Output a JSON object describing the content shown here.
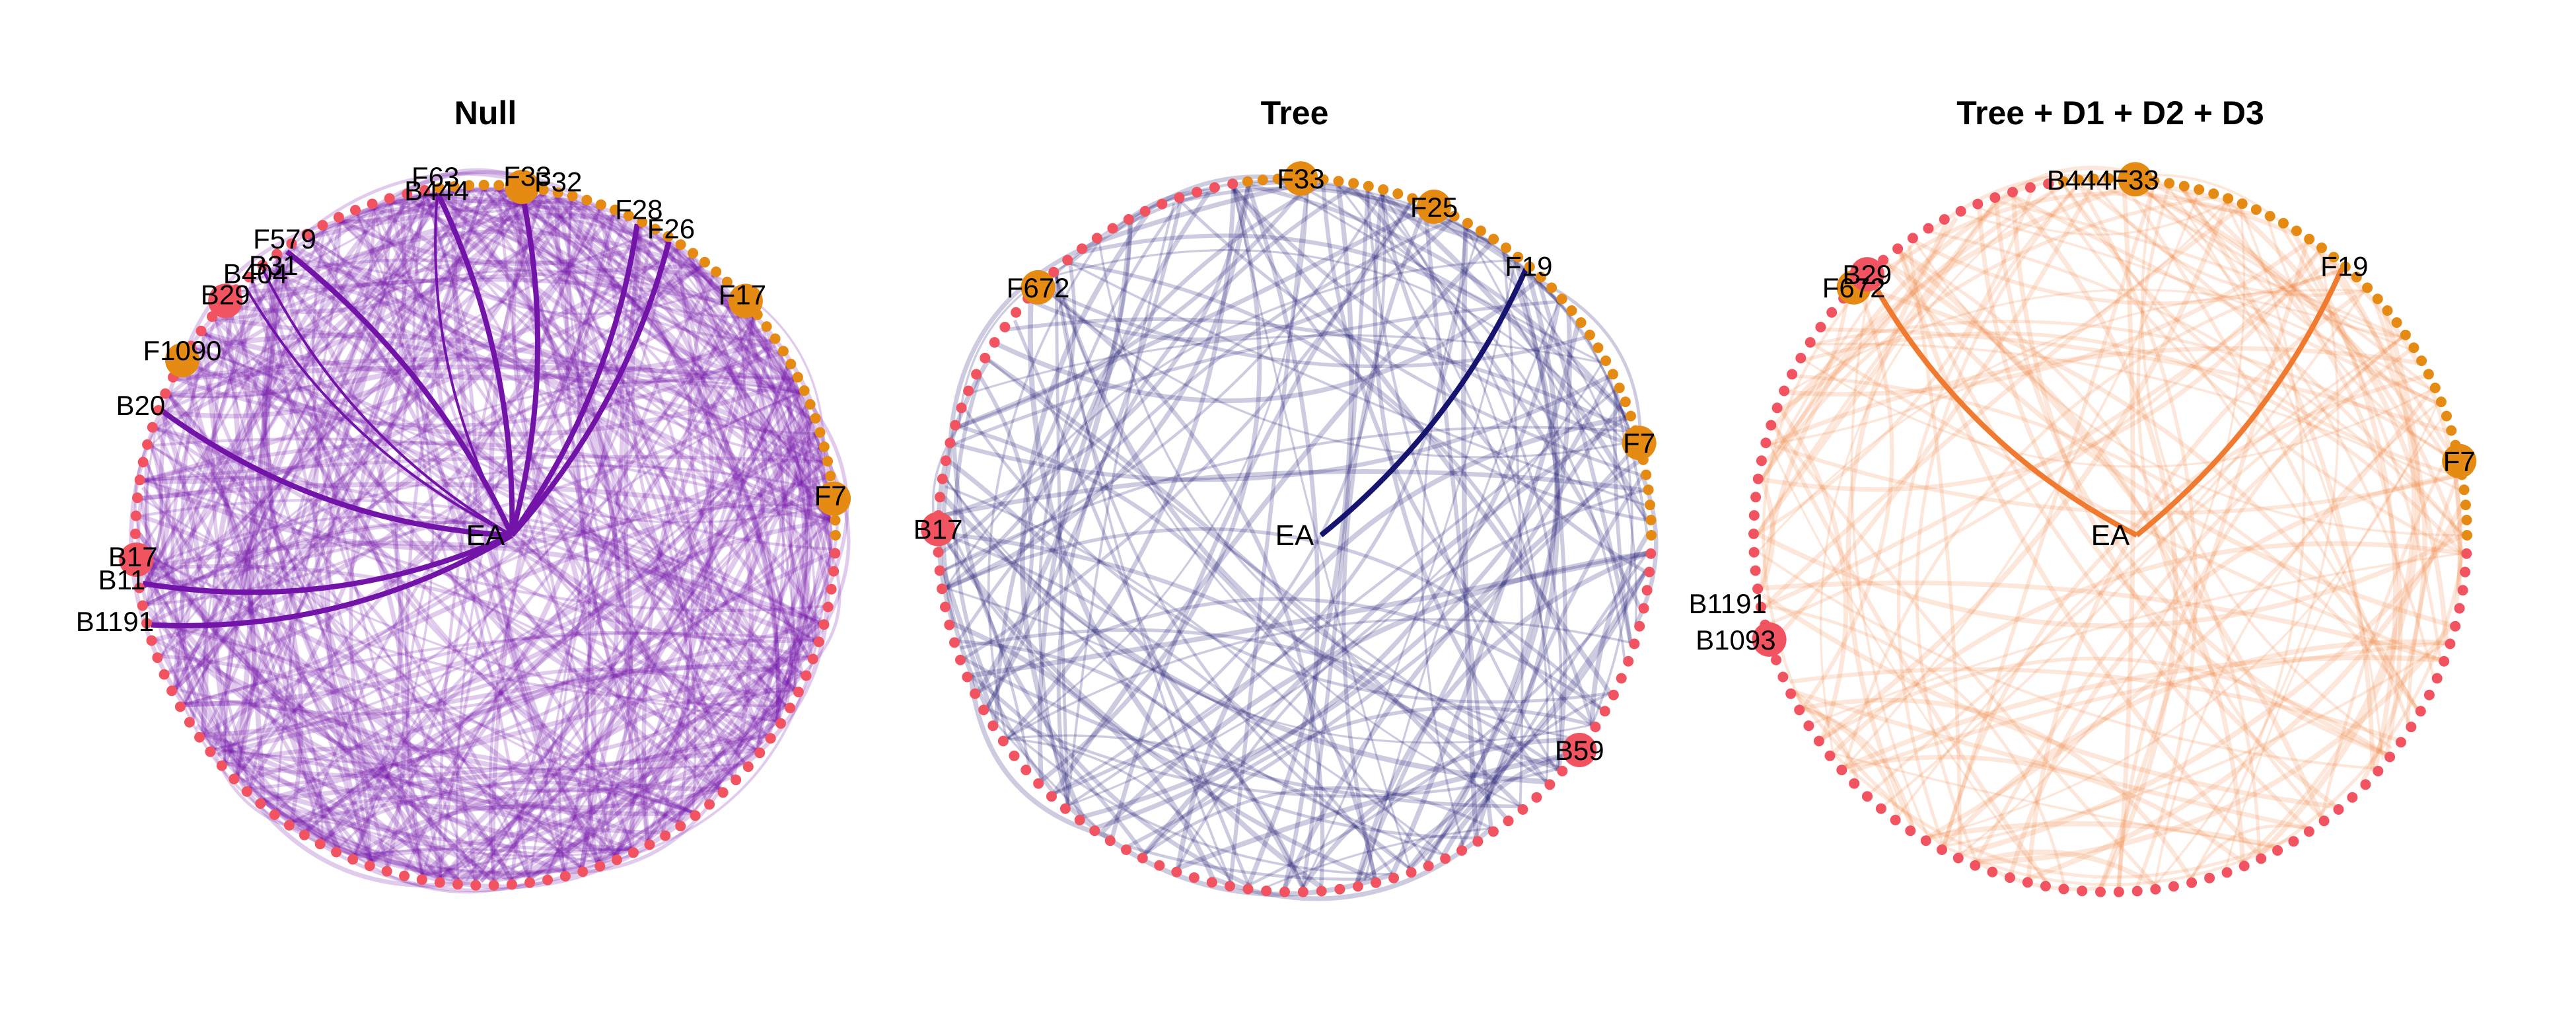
{
  "colors": {
    "background": "#ffffff",
    "bacteria_node": "#f25360",
    "fungi_node": "#e58a12"
  },
  "node_ring": {
    "fungi_count": 42,
    "bacteria_count": 88
  },
  "panels": [
    {
      "title": "Null",
      "edge_color": "#7214a8",
      "center_label": "EA",
      "labels": [
        {
          "text": "F63",
          "group": "F",
          "highlight": false
        },
        {
          "text": "F33",
          "group": "F",
          "highlight": true
        },
        {
          "text": "F32",
          "group": "F",
          "highlight": false
        },
        {
          "text": "F28",
          "group": "F",
          "highlight": false
        },
        {
          "text": "F26",
          "group": "F",
          "highlight": false
        },
        {
          "text": "F579",
          "group": "F",
          "highlight": false
        },
        {
          "text": "F1090",
          "group": "F",
          "highlight": true
        },
        {
          "text": "F17",
          "group": "F",
          "highlight": true
        },
        {
          "text": "F7",
          "group": "F",
          "highlight": true
        },
        {
          "text": "B11",
          "group": "B",
          "highlight": false
        },
        {
          "text": "B1191",
          "group": "B",
          "highlight": false
        },
        {
          "text": "B17",
          "group": "B",
          "highlight": true
        },
        {
          "text": "B20",
          "group": "B",
          "highlight": false
        },
        {
          "text": "B29",
          "group": "B",
          "highlight": true
        },
        {
          "text": "B404",
          "group": "B",
          "highlight": false
        },
        {
          "text": "B31",
          "group": "B",
          "highlight": false
        },
        {
          "text": "B444",
          "group": "B",
          "highlight": false
        }
      ],
      "emphasized_edges": [
        "F63",
        "F33",
        "F28",
        "F26",
        "F579",
        "B11",
        "B1191",
        "B20",
        "B404",
        "B31",
        "B444"
      ]
    },
    {
      "title": "Tree",
      "edge_color": "#16146e",
      "center_label": "EA",
      "labels": [
        {
          "text": "F33",
          "group": "F",
          "highlight": true
        },
        {
          "text": "F672",
          "group": "F",
          "highlight": true
        },
        {
          "text": "F25",
          "group": "F",
          "highlight": true
        },
        {
          "text": "F19",
          "group": "F",
          "highlight": false
        },
        {
          "text": "F7",
          "group": "F",
          "highlight": true
        },
        {
          "text": "B17",
          "group": "B",
          "highlight": true
        },
        {
          "text": "B59",
          "group": "B",
          "highlight": true
        }
      ],
      "emphasized_edges": [
        "F19"
      ]
    },
    {
      "title": "Tree + D1 + D2 + D3",
      "edge_color": "#f07a30",
      "center_label": "EA",
      "labels": [
        {
          "text": "F33",
          "group": "F",
          "highlight": true
        },
        {
          "text": "F672",
          "group": "F",
          "highlight": true
        },
        {
          "text": "F19",
          "group": "F",
          "highlight": false
        },
        {
          "text": "F7",
          "group": "F",
          "highlight": true
        },
        {
          "text": "B1093",
          "group": "B",
          "highlight": true
        },
        {
          "text": "B1191",
          "group": "B",
          "highlight": false
        },
        {
          "text": "B29",
          "group": "B",
          "highlight": true
        },
        {
          "text": "B444",
          "group": "B",
          "highlight": false
        }
      ],
      "emphasized_edges": [
        "F19",
        "B29"
      ]
    }
  ]
}
